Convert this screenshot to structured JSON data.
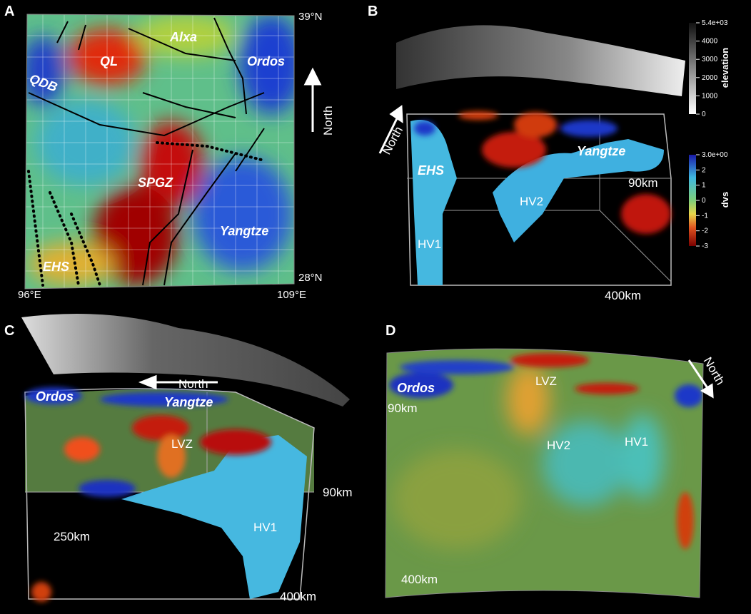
{
  "panels": [
    {
      "letter": "A",
      "labels": [
        "39°N",
        "28°N",
        "96°E",
        "109°E",
        "QL",
        "Alxa",
        "Ordos",
        "QDB",
        "SPGZ",
        "Yangtze",
        "EHS",
        "North"
      ]
    },
    {
      "letter": "B",
      "labels": [
        "North",
        "EHS",
        "Yangtze",
        "HV2",
        "90km",
        "HV1",
        "400km"
      ]
    },
    {
      "letter": "C",
      "labels": [
        "North",
        "Ordos",
        "Yangtze",
        "LVZ",
        "90km",
        "250km",
        "HV1",
        "400km"
      ]
    },
    {
      "letter": "D",
      "labels": [
        "Ordos",
        "LVZ",
        "North",
        "90km",
        "HV2",
        "HV1",
        "400km"
      ]
    }
  ],
  "colorbars": [
    {
      "title": "elevation",
      "ticks": [
        "5.4e+03",
        "4000",
        "3000",
        "2000",
        "1000",
        "0"
      ]
    },
    {
      "title": "dvs",
      "ticks": [
        "3.0e+00",
        "2",
        "1",
        "0",
        "-1",
        "-2",
        "-3"
      ]
    }
  ]
}
